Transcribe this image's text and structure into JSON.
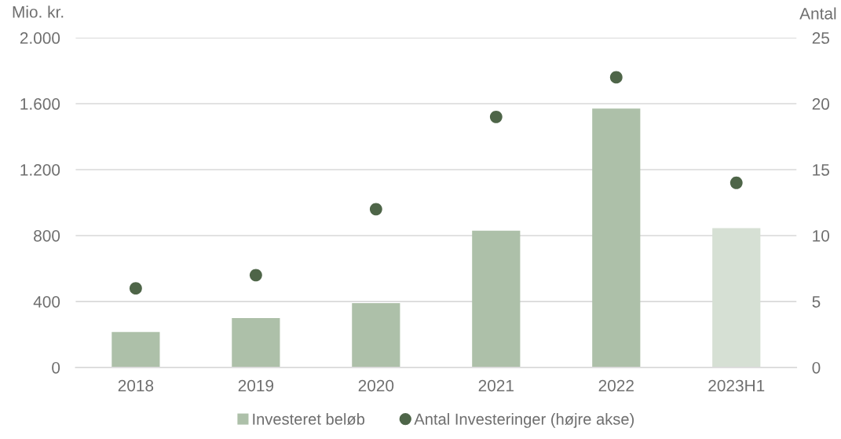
{
  "chart_data": {
    "type": "bar",
    "ylabel": "Mio. kr.",
    "y2label": "Antal",
    "categories": [
      "2018",
      "2019",
      "2020",
      "2021",
      "2022",
      "2023H1"
    ],
    "series": [
      {
        "name": "Investeret beløb",
        "color": "#adc0a9",
        "colors": [
          "#adc0a9",
          "#adc0a9",
          "#adc0a9",
          "#adc0a9",
          "#adc0a9",
          "#d6e0d4"
        ],
        "values": [
          215,
          300,
          390,
          830,
          1570,
          845
        ]
      },
      {
        "name": "Antal Investeringer (højre akse)",
        "type": "scatter",
        "axis": "y2",
        "color": "#4e6548",
        "values": [
          6,
          7,
          12,
          19,
          22,
          14
        ]
      }
    ],
    "ylim": [
      0,
      2000
    ],
    "yticks": [
      0,
      400,
      800,
      {
        "value": 1200,
        "label": "1.200"
      },
      {
        "value": 1600,
        "label": "1.600"
      },
      {
        "value": 2000,
        "label": "2.000"
      }
    ],
    "y2lim": [
      0,
      25
    ],
    "y2ticks": [
      0,
      5,
      10,
      15,
      20,
      25
    ],
    "grid": "y",
    "legend": "bottom",
    "marker": "circle"
  }
}
